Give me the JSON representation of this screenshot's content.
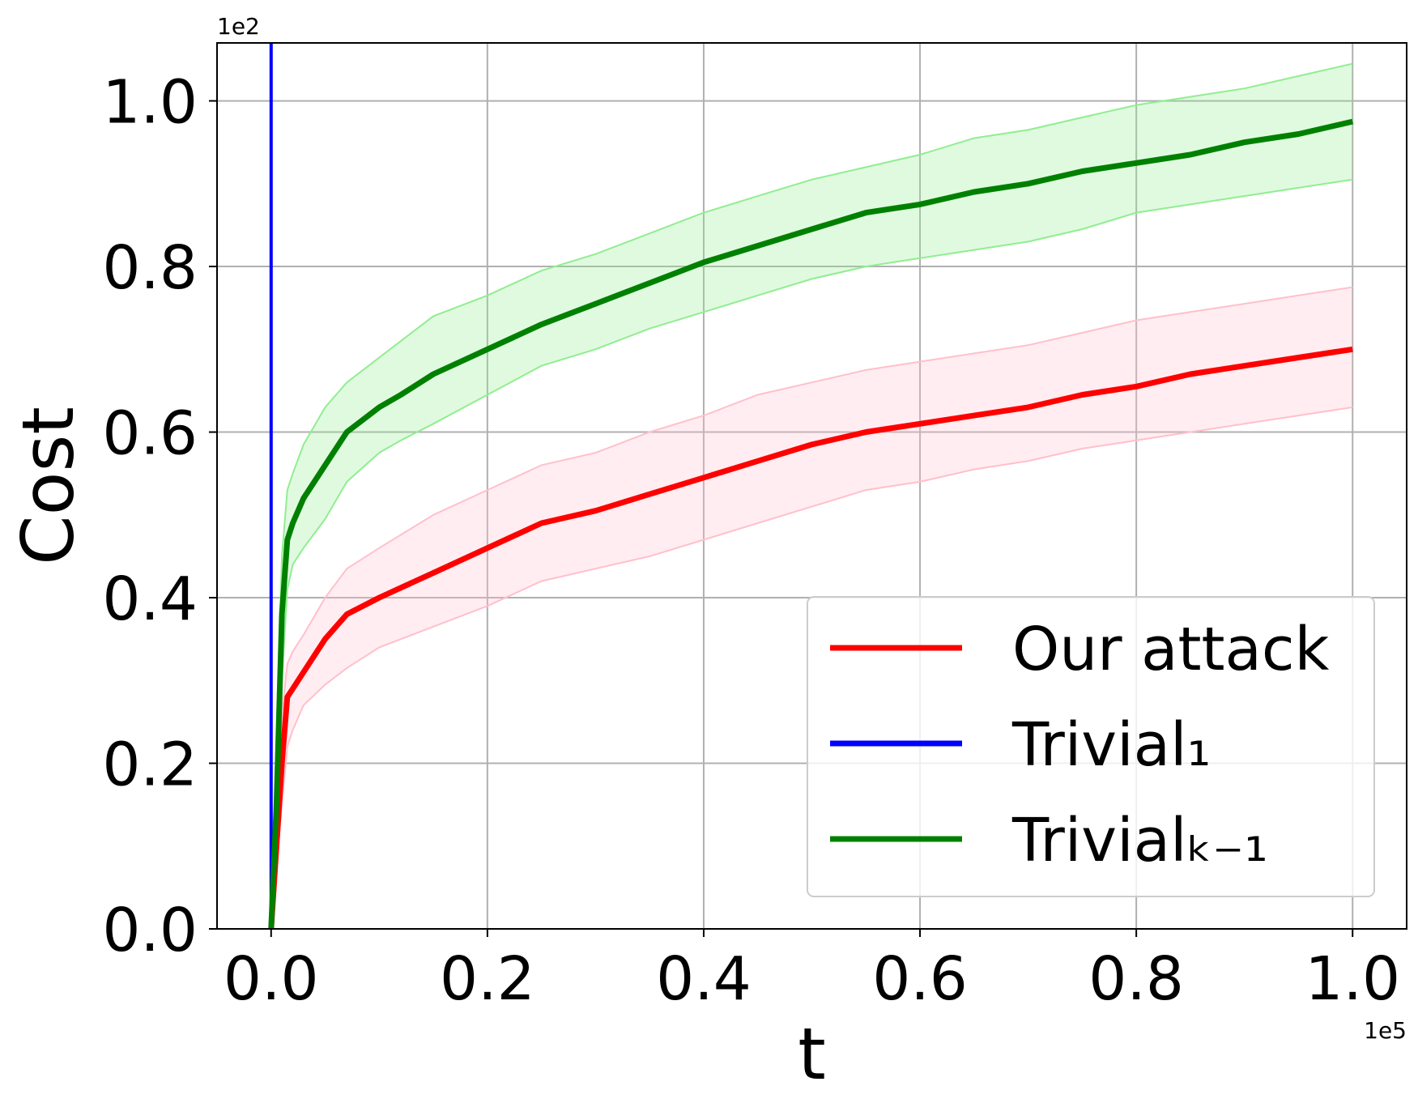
{
  "chart_data": {
    "type": "line",
    "xlabel": "t",
    "ylabel": "Cost",
    "x_offset_label": "1e5",
    "y_offset_label": "1e2",
    "xlim": [
      -0.05,
      1.05
    ],
    "ylim": [
      0,
      1.07
    ],
    "xticks": [
      0.0,
      0.2,
      0.4,
      0.6,
      0.8,
      1.0
    ],
    "yticks": [
      0.0,
      0.2,
      0.4,
      0.6,
      0.8,
      1.0
    ],
    "xtick_labels": [
      "0.0",
      "0.2",
      "0.4",
      "0.6",
      "0.8",
      "1.0"
    ],
    "ytick_labels": [
      "0.0",
      "0.2",
      "0.4",
      "0.6",
      "0.8",
      "1.0"
    ],
    "grid": true,
    "legend_position": "lower-right",
    "series": [
      {
        "name": "Our attack",
        "color": "#ff0000",
        "band_color": "#ffc0cb",
        "x": [
          0.0,
          0.01,
          0.015,
          0.02,
          0.03,
          0.05,
          0.07,
          0.1,
          0.15,
          0.2,
          0.25,
          0.3,
          0.35,
          0.4,
          0.45,
          0.5,
          0.55,
          0.6,
          0.65,
          0.7,
          0.75,
          0.8,
          0.85,
          0.9,
          0.95,
          1.0
        ],
        "y": [
          0.0,
          0.2,
          0.28,
          0.29,
          0.31,
          0.35,
          0.38,
          0.4,
          0.43,
          0.46,
          0.49,
          0.505,
          0.525,
          0.545,
          0.565,
          0.585,
          0.6,
          0.61,
          0.62,
          0.63,
          0.645,
          0.655,
          0.67,
          0.68,
          0.69,
          0.7
        ],
        "lower": [
          0.0,
          0.15,
          0.22,
          0.24,
          0.27,
          0.295,
          0.315,
          0.34,
          0.365,
          0.39,
          0.42,
          0.435,
          0.45,
          0.47,
          0.49,
          0.51,
          0.53,
          0.54,
          0.555,
          0.565,
          0.58,
          0.59,
          0.6,
          0.61,
          0.62,
          0.63
        ],
        "upper": [
          0.0,
          0.26,
          0.32,
          0.335,
          0.355,
          0.4,
          0.435,
          0.46,
          0.5,
          0.53,
          0.56,
          0.575,
          0.6,
          0.62,
          0.645,
          0.66,
          0.675,
          0.685,
          0.695,
          0.705,
          0.72,
          0.735,
          0.745,
          0.755,
          0.765,
          0.775
        ]
      },
      {
        "name": "Trivial₁",
        "color": "#0000ff",
        "x": [
          0.0,
          0.0
        ],
        "y": [
          0.0,
          1.07
        ]
      },
      {
        "name": "Trivialₖ₋₁",
        "color": "#008000",
        "band_color": "#90ee90",
        "x": [
          0.0,
          0.005,
          0.01,
          0.015,
          0.02,
          0.03,
          0.05,
          0.07,
          0.1,
          0.12,
          0.15,
          0.2,
          0.25,
          0.3,
          0.35,
          0.4,
          0.45,
          0.5,
          0.55,
          0.6,
          0.65,
          0.7,
          0.75,
          0.8,
          0.85,
          0.9,
          0.95,
          1.0
        ],
        "y": [
          0.0,
          0.15,
          0.38,
          0.47,
          0.49,
          0.52,
          0.56,
          0.6,
          0.63,
          0.645,
          0.67,
          0.7,
          0.73,
          0.755,
          0.78,
          0.805,
          0.825,
          0.845,
          0.865,
          0.875,
          0.89,
          0.9,
          0.915,
          0.925,
          0.935,
          0.95,
          0.96,
          0.975
        ],
        "lower": [
          0.0,
          0.1,
          0.3,
          0.41,
          0.44,
          0.46,
          0.495,
          0.54,
          0.575,
          0.59,
          0.61,
          0.645,
          0.68,
          0.7,
          0.725,
          0.745,
          0.765,
          0.785,
          0.8,
          0.81,
          0.82,
          0.83,
          0.845,
          0.865,
          0.875,
          0.885,
          0.895,
          0.905
        ],
        "upper": [
          0.0,
          0.22,
          0.45,
          0.53,
          0.55,
          0.585,
          0.63,
          0.66,
          0.69,
          0.71,
          0.74,
          0.765,
          0.795,
          0.815,
          0.84,
          0.865,
          0.885,
          0.905,
          0.92,
          0.935,
          0.955,
          0.965,
          0.98,
          0.995,
          1.005,
          1.015,
          1.03,
          1.045
        ]
      }
    ]
  }
}
